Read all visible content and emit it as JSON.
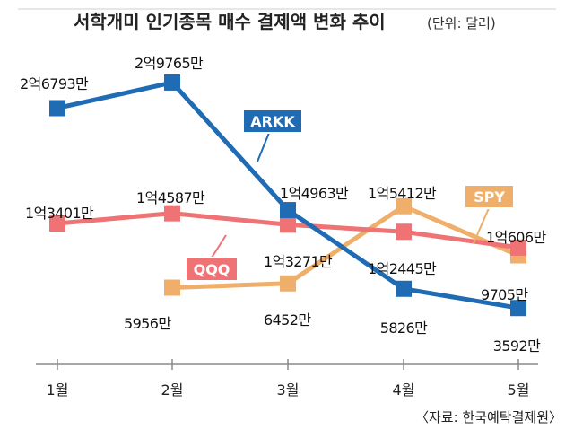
{
  "chart_data": {
    "type": "line",
    "title": "서학개미 인기종목 매수 결제액 변화 추이",
    "unit": "(단위: 달러)",
    "source": "〈자료: 한국예탁결제원〉",
    "categories": [
      "1월",
      "2월",
      "3월",
      "4월",
      "5월"
    ],
    "legend": "inline",
    "grid": false,
    "series": [
      {
        "name": "ARKK",
        "color": "#1f6cb5",
        "values": [
          267930000,
          297650000,
          149630000,
          58260000,
          35920000
        ],
        "labels": [
          "2억6793만",
          "2억9765만",
          "1억4963만",
          "5826만",
          "3592만"
        ]
      },
      {
        "name": "QQQ",
        "color": "#ef7275",
        "values": [
          134010000,
          145870000,
          132710000,
          124450000,
          106060000
        ],
        "labels": [
          "1억3401만",
          "1억4587만",
          "1억3271만",
          "1억2445만",
          "1억606만"
        ]
      },
      {
        "name": "SPY",
        "color": "#efae6a",
        "values": [
          null,
          59560000,
          64520000,
          154120000,
          97050000
        ],
        "labels": [
          null,
          "5956만",
          "6452만",
          "1억5412만",
          "9705만"
        ]
      }
    ]
  }
}
